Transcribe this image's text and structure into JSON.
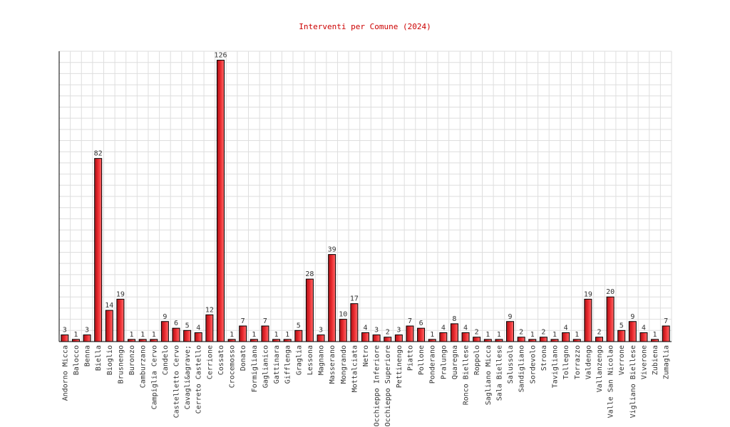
{
  "chart_data": {
    "type": "bar",
    "title": "Interventi per Comune (2024)",
    "xlabel": "",
    "ylabel": "",
    "ylim": [
      0,
      130
    ],
    "grid": true,
    "bar_color": "#e8262b",
    "title_color": "#cc0000",
    "categories": [
      "Andorno Micca",
      "Balocco",
      "Benna",
      "Biella",
      "Bioglio",
      "Brusnengo",
      "Buronzo",
      "Camburzano",
      "Campiglia Cervo",
      "Candelo",
      "Castelletto Cervo",
      "Cavagli&agrave;",
      "Cerreto Castello",
      "Cerrione",
      "Cossato",
      "Crocemosso",
      "Donato",
      "Formigliana",
      "Gaglianico",
      "Gattinara",
      "Gifflenga",
      "Graglia",
      "Lessona",
      "Magnano",
      "Masserano",
      "Mongrando",
      "Mottalciata",
      "Netro",
      "Occhieppo Inferiore",
      "Occhieppo Superiore",
      "Pettinengo",
      "Piatto",
      "Pollone",
      "Ponderano",
      "Pralungo",
      "Quaregna",
      "Ronco Biellese",
      "Roppolo",
      "Sagliano Micca",
      "Sala Biellese",
      "Salussola",
      "Sandigliano",
      "Sordevolo",
      "Strona",
      "Tavigliano",
      "Tollegno",
      "Torrazzo",
      "Valdengo",
      "Vallanzengo",
      "Valle San Nicolao",
      "Verrone",
      "Vigliano Biellese",
      "Viverone",
      "Zubiena",
      "Zumaglia"
    ],
    "values": [
      3,
      1,
      3,
      82,
      14,
      19,
      1,
      1,
      1,
      9,
      6,
      5,
      4,
      12,
      126,
      1,
      7,
      1,
      7,
      1,
      1,
      5,
      28,
      3,
      39,
      10,
      17,
      4,
      3,
      2,
      3,
      7,
      6,
      1,
      4,
      8,
      4,
      2,
      1,
      1,
      9,
      2,
      1,
      2,
      1,
      4,
      1,
      19,
      2,
      20,
      5,
      9,
      4,
      1,
      7
    ]
  }
}
